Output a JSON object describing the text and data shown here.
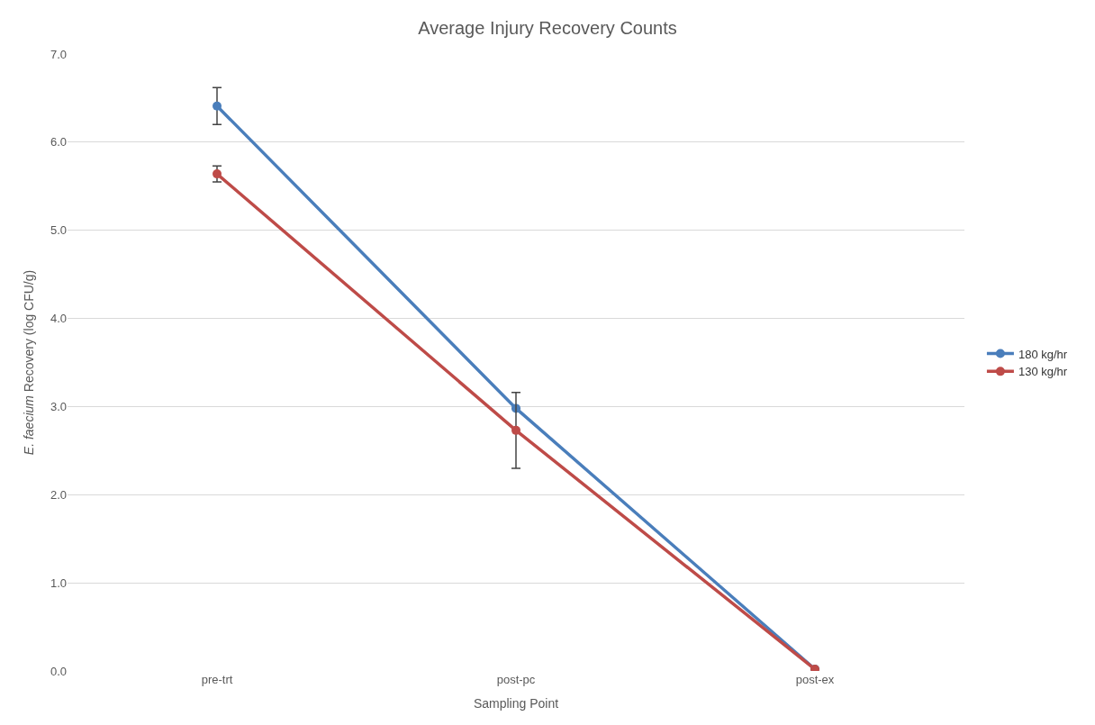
{
  "chart_data": {
    "type": "line",
    "title": "Average Injury Recovery Counts",
    "xlabel": "Sampling Point",
    "ylabel": "E. faecium Recovery (log CFU/g)",
    "categories": [
      "pre-trt",
      "post-pc",
      "post-ex"
    ],
    "series": [
      {
        "name": "180 kg/hr",
        "color": "#4a7ebb",
        "values": [
          6.41,
          2.98,
          0.02
        ],
        "errors": [
          0.21,
          null,
          null
        ]
      },
      {
        "name": "130 kg/hr",
        "color": "#be4b48",
        "values": [
          5.64,
          2.73,
          0.02
        ],
        "errors": [
          0.09,
          0.43,
          null
        ]
      }
    ],
    "ylim": [
      0,
      7
    ],
    "yticks": [
      {
        "value": 0,
        "label": "0.0"
      },
      {
        "value": 1,
        "label": "1.0"
      },
      {
        "value": 2,
        "label": "2.0"
      },
      {
        "value": 3,
        "label": "3.0"
      },
      {
        "value": 4,
        "label": "4.0"
      },
      {
        "value": 5,
        "label": "5.0"
      },
      {
        "value": 6,
        "label": "6.0"
      },
      {
        "value": 7,
        "label": "7.0"
      }
    ],
    "grid": "y",
    "legend": "right",
    "marker": "circle",
    "line_style": "solid"
  }
}
